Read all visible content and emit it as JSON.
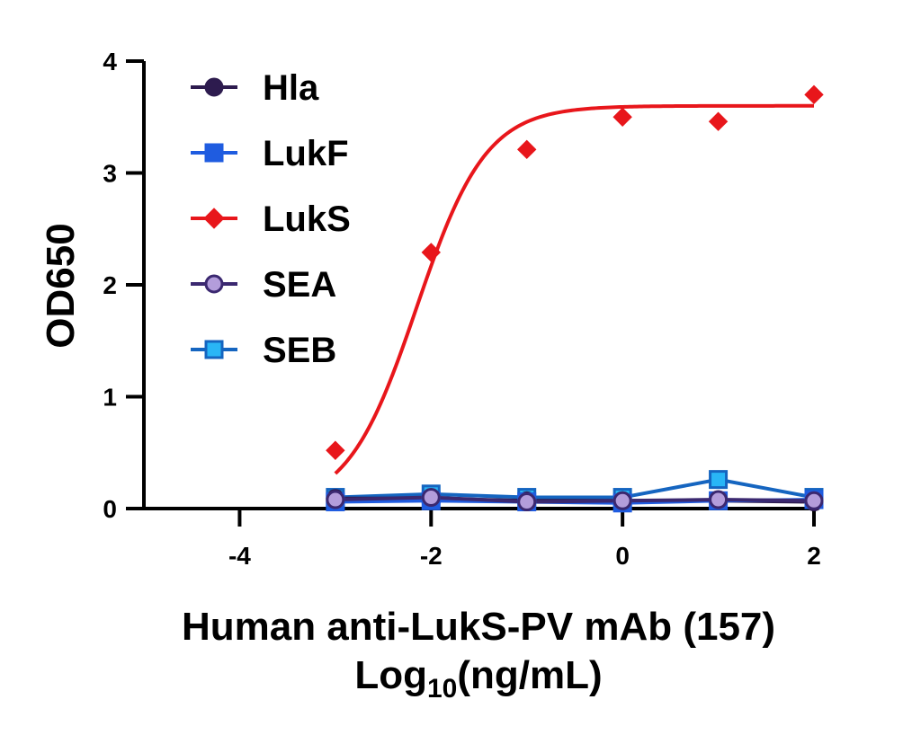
{
  "chart_data": {
    "type": "scatter",
    "xlabel_line1": "Human anti-LukS-PV mAb (157)",
    "xlabel_line2_prefix": "Log",
    "xlabel_line2_sub": "10",
    "xlabel_line2_suffix": "(ng/mL)",
    "ylabel": "OD650",
    "xlim": [
      -5,
      2
    ],
    "ylim": [
      0,
      4
    ],
    "x_ticks": [
      -4,
      -2,
      0,
      2
    ],
    "x_tick_labels": [
      "-4",
      "-2",
      "0",
      "2"
    ],
    "y_ticks": [
      0,
      1,
      2,
      3,
      4
    ],
    "y_tick_labels": [
      "0",
      "1",
      "2",
      "3",
      "4"
    ],
    "legend_position": "top-left",
    "grid": false,
    "series": [
      {
        "name": "Hla",
        "marker": "circle",
        "color": "#2d1b4e",
        "fill": "#2d1b4e",
        "x": [
          -3,
          -2,
          -1,
          0,
          1,
          2
        ],
        "y": [
          0.09,
          0.09,
          0.07,
          0.07,
          0.07,
          0.06
        ]
      },
      {
        "name": "LukF",
        "marker": "square",
        "color": "#1f5ce0",
        "fill": "#1f5ce0",
        "x": [
          -3,
          -2,
          -1,
          0,
          1,
          2
        ],
        "y": [
          0.06,
          0.07,
          0.06,
          0.05,
          0.07,
          0.08
        ]
      },
      {
        "name": "LukS",
        "marker": "diamond",
        "color": "#e8161b",
        "fill": "#e8161b",
        "x": [
          -3,
          -2,
          -1,
          0,
          1,
          2
        ],
        "y": [
          0.52,
          2.29,
          3.21,
          3.5,
          3.46,
          3.7
        ]
      },
      {
        "name": "SEA",
        "marker": "circle",
        "color": "#3b2870",
        "fill": "#b39ddb",
        "x": [
          -3,
          -2,
          -1,
          0,
          1,
          2
        ],
        "y": [
          0.08,
          0.1,
          0.06,
          0.07,
          0.08,
          0.07
        ]
      },
      {
        "name": "SEB",
        "marker": "square",
        "color": "#1565c0",
        "fill": "#29b6f6",
        "x": [
          -3,
          -2,
          -1,
          0,
          1,
          2
        ],
        "y": [
          0.1,
          0.13,
          0.1,
          0.1,
          0.26,
          0.1
        ]
      }
    ]
  }
}
